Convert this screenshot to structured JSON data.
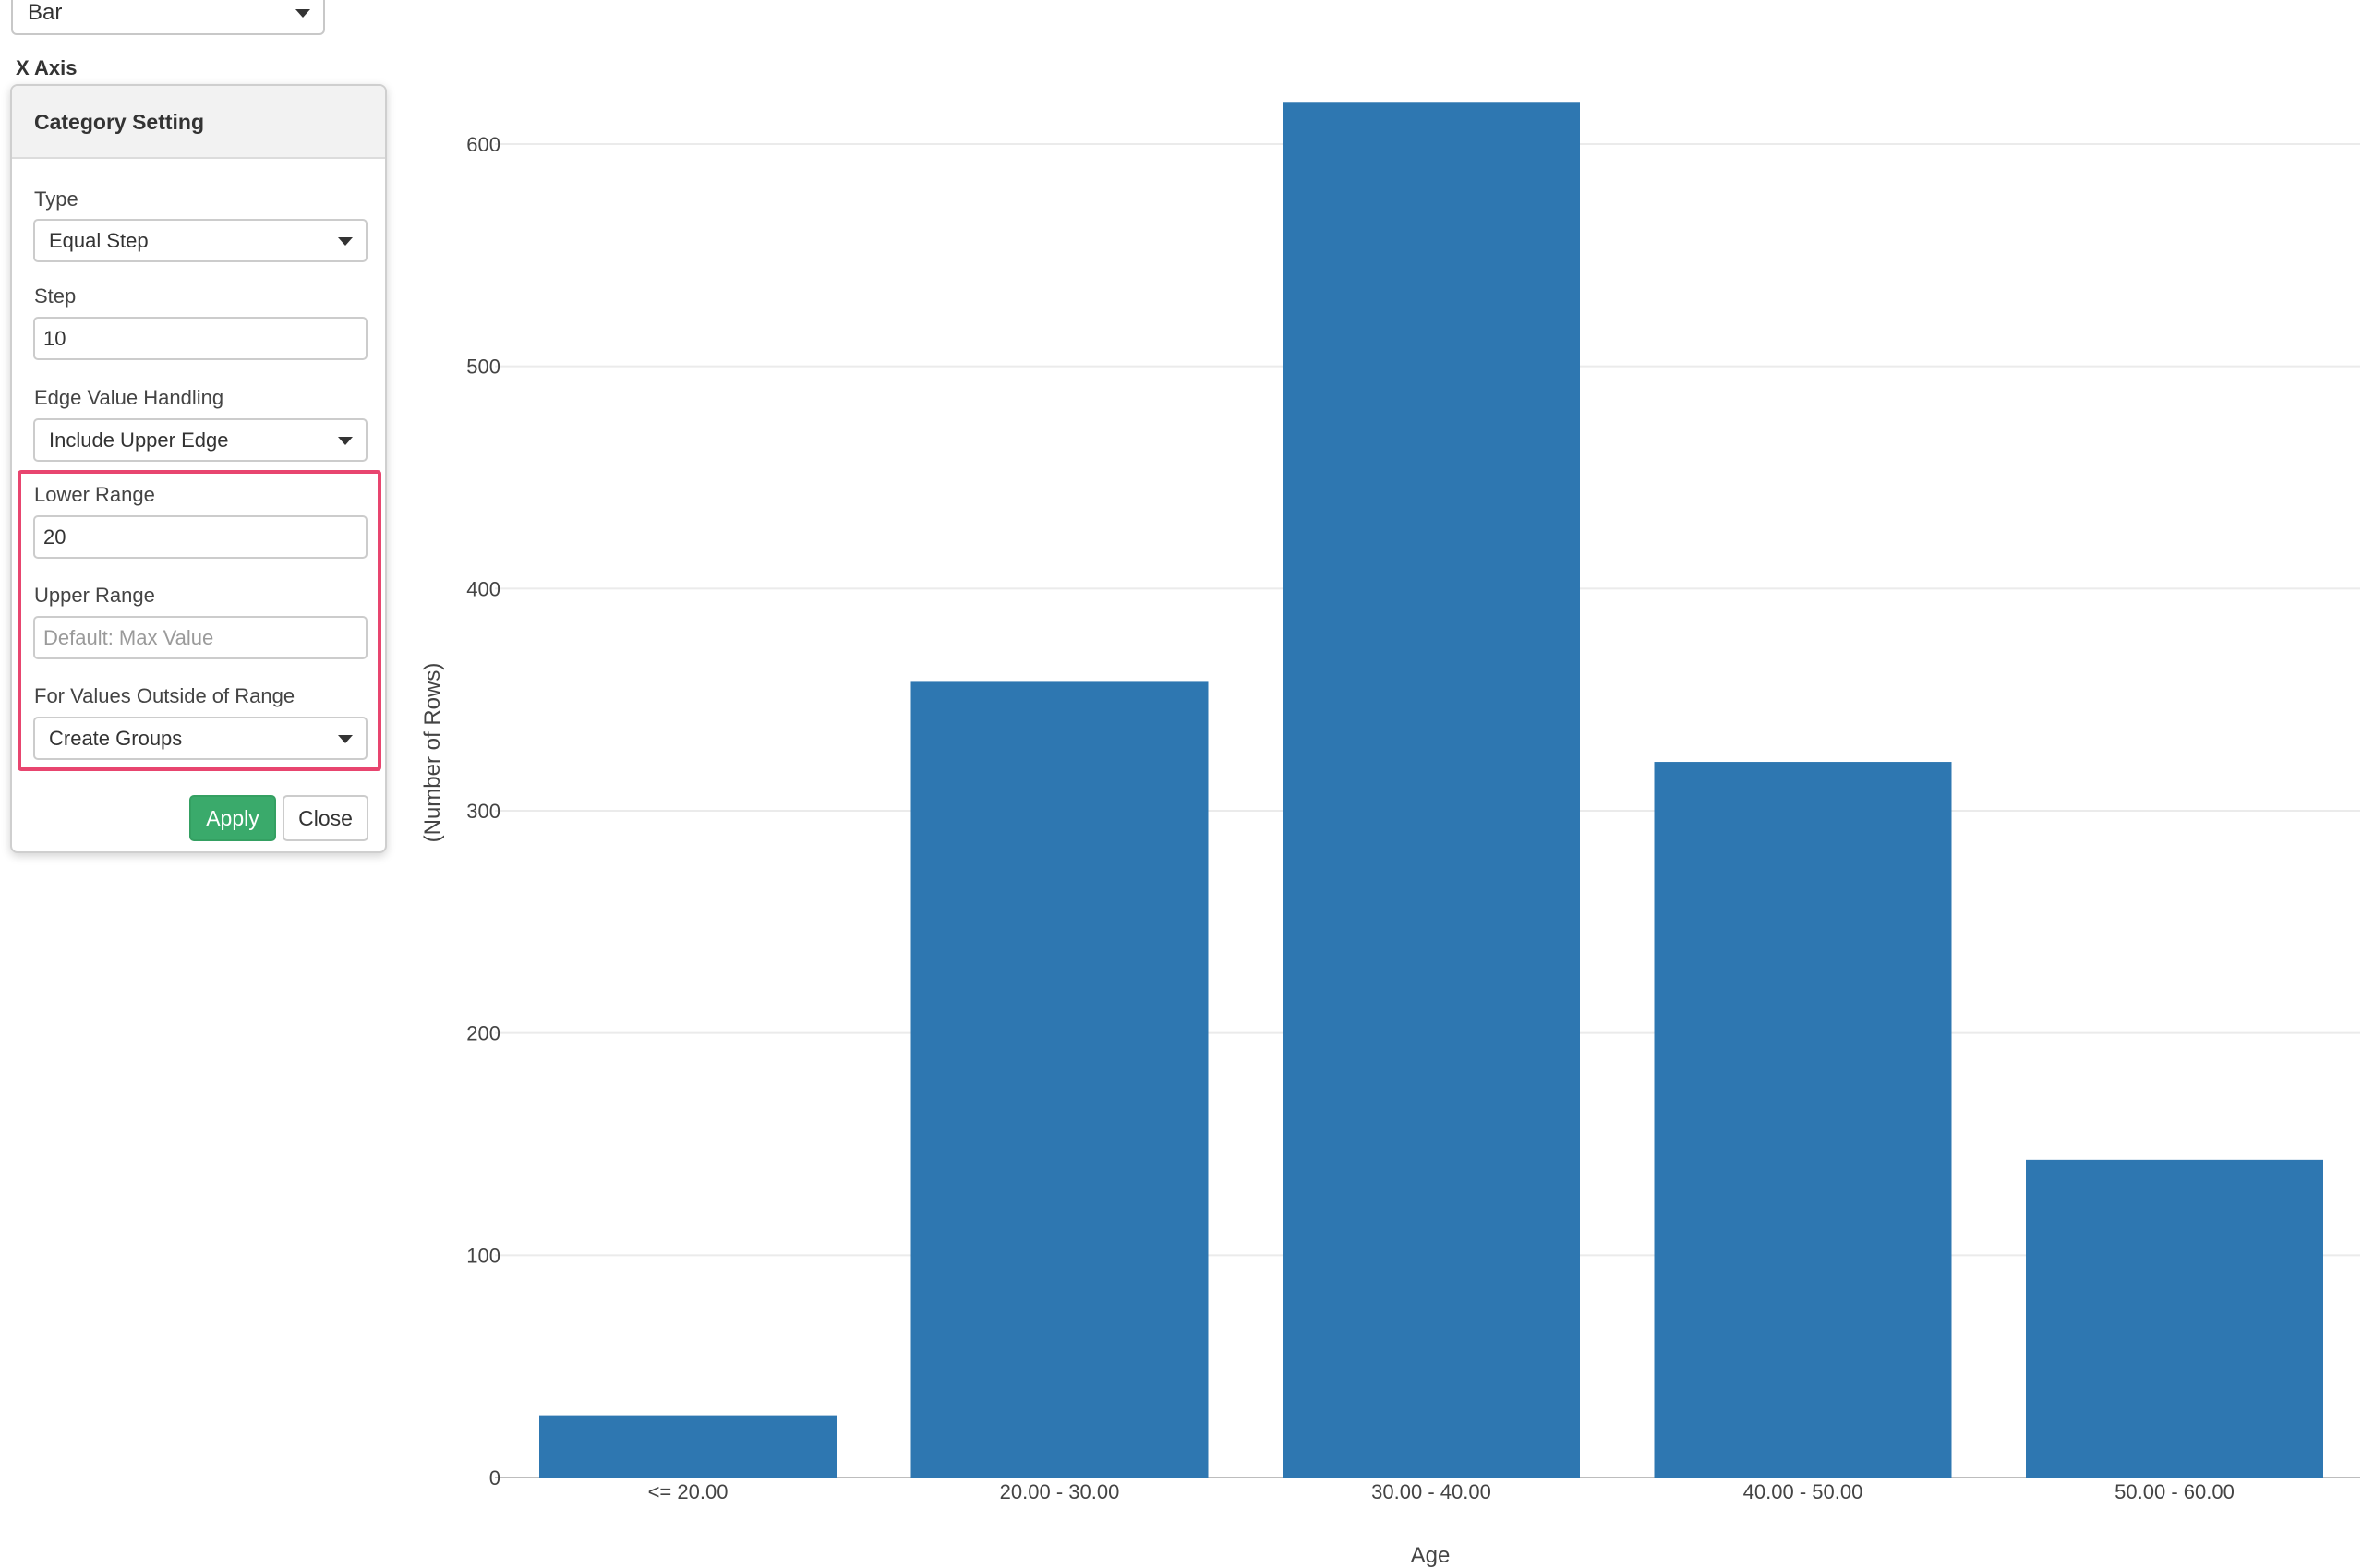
{
  "chart_type_select": {
    "value": "Bar"
  },
  "x_axis_section": {
    "label": "X Axis"
  },
  "category_setting": {
    "title": "Category Setting",
    "type": {
      "label": "Type",
      "value": "Equal Step"
    },
    "step": {
      "label": "Step",
      "value": "10"
    },
    "edge_value_handling": {
      "label": "Edge Value Handling",
      "value": "Include Upper Edge"
    },
    "lower_range": {
      "label": "Lower Range",
      "value": "20"
    },
    "upper_range": {
      "label": "Upper Range",
      "value": "",
      "placeholder": "Default: Max Value"
    },
    "outside_range": {
      "label": "For Values Outside of Range",
      "value": "Create Groups"
    },
    "apply_label": "Apply",
    "close_label": "Close",
    "highlight_color": "#e8456f",
    "apply_color": "#3aaa6b"
  },
  "chart_data": {
    "type": "bar",
    "categories": [
      "<= 20.00",
      "20.00 - 30.00",
      "30.00 - 40.00",
      "40.00 - 50.00",
      "50.00 - 60.00"
    ],
    "values": [
      28,
      358,
      619,
      322,
      143
    ],
    "xlabel": "Age",
    "ylabel": "(Number of Rows)",
    "ylim": [
      0,
      600
    ],
    "yticks": [
      0,
      100,
      200,
      300,
      400,
      500,
      600
    ],
    "bar_color": "#2e77b1",
    "grid": true
  }
}
